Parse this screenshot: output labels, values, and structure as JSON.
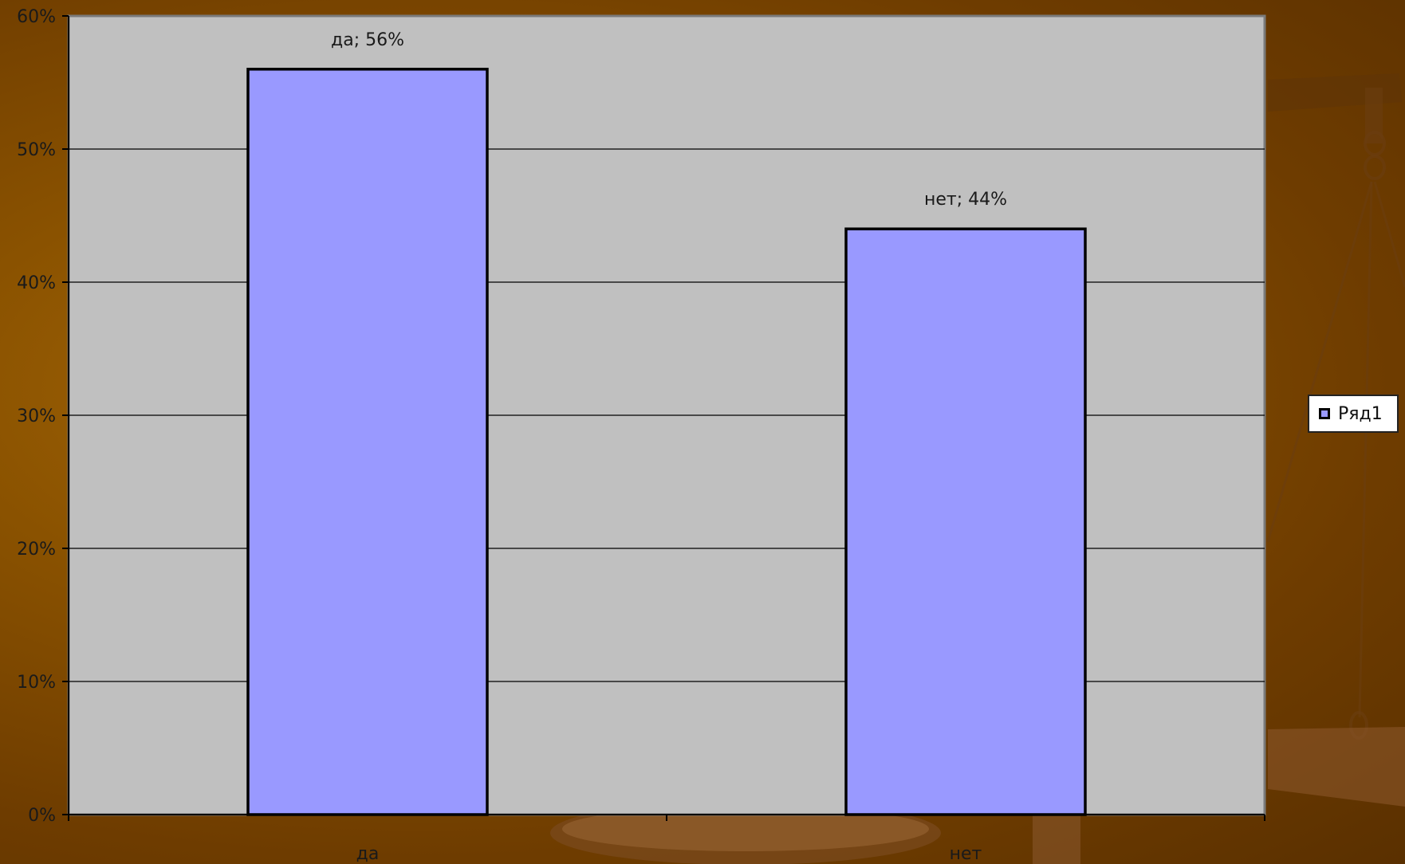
{
  "chart_data": {
    "type": "bar",
    "categories": [
      "да",
      "нет"
    ],
    "series": [
      {
        "name": "Ряд1",
        "values": [
          56,
          44
        ]
      }
    ],
    "data_labels": [
      "да; 56%",
      "нет; 44%"
    ],
    "y_ticks": [
      "0%",
      "10%",
      "20%",
      "30%",
      "40%",
      "50%",
      "60%"
    ],
    "ylim": [
      0,
      60
    ],
    "y_unit": "%",
    "grid": true,
    "legend_position": "right",
    "bar_color": "#9999ff",
    "plot_background": "#c0c0c0"
  }
}
